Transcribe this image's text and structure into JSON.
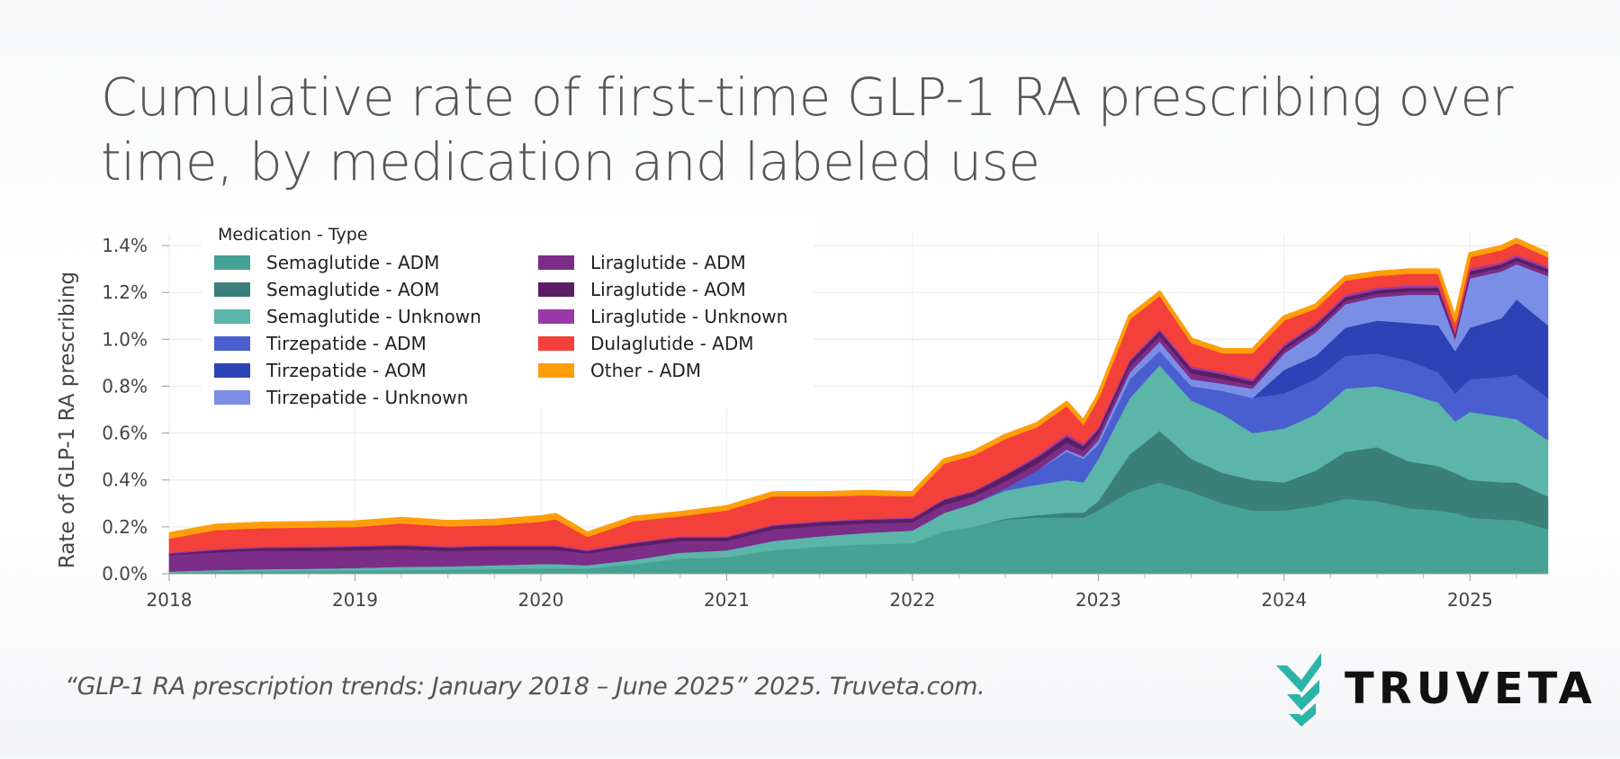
{
  "title": "Cumulative rate of first-time GLP-1 RA prescribing over time, by medication and labeled use",
  "citation": "“GLP-1 RA prescription trends: January 2018 – June 2025” 2025. Truveta.com.",
  "brand": {
    "name": "TRUVETA",
    "icon": "truveta-chevron-logo-icon",
    "color": "#2bb5a8"
  },
  "chart_data": {
    "type": "area",
    "stacked": true,
    "ylabel": "Rate of GLP-1 RA prescribing",
    "xlabel": "",
    "x_ticks": [
      "2018",
      "2019",
      "2020",
      "2021",
      "2022",
      "2023",
      "2024",
      "2025"
    ],
    "y_ticks": [
      "0.0%",
      "0.2%",
      "0.4%",
      "0.6%",
      "0.8%",
      "1.0%",
      "1.2%",
      "1.4%"
    ],
    "ylim": [
      0,
      1.45
    ],
    "y_unit": "%",
    "grid": true,
    "legend_title": "Medication - Type",
    "legend_placement": "top-left",
    "x": [
      2018.0,
      2018.25,
      2018.5,
      2018.75,
      2019.0,
      2019.25,
      2019.5,
      2019.75,
      2020.0,
      2020.08,
      2020.25,
      2020.5,
      2020.75,
      2021.0,
      2021.25,
      2021.5,
      2021.75,
      2022.0,
      2022.17,
      2022.33,
      2022.5,
      2022.67,
      2022.83,
      2022.92,
      2023.0,
      2023.17,
      2023.33,
      2023.5,
      2023.67,
      2023.83,
      2024.0,
      2024.17,
      2024.33,
      2024.5,
      2024.67,
      2024.83,
      2024.92,
      2025.0,
      2025.17,
      2025.25,
      2025.42
    ],
    "series": [
      {
        "name": "Semaglutide - ADM",
        "color": "#45a294",
        "values": [
          0.005,
          0.008,
          0.01,
          0.012,
          0.013,
          0.015,
          0.017,
          0.019,
          0.022,
          0.022,
          0.022,
          0.04,
          0.065,
          0.07,
          0.1,
          0.115,
          0.125,
          0.13,
          0.18,
          0.2,
          0.23,
          0.24,
          0.24,
          0.24,
          0.27,
          0.35,
          0.39,
          0.35,
          0.3,
          0.27,
          0.27,
          0.29,
          0.32,
          0.31,
          0.28,
          0.27,
          0.26,
          0.24,
          0.23,
          0.23,
          0.19
        ]
      },
      {
        "name": "Semaglutide - AOM",
        "color": "#3a8078",
        "values": [
          0,
          0,
          0,
          0,
          0,
          0,
          0,
          0,
          0,
          0,
          0,
          0,
          0,
          0,
          0,
          0,
          0,
          0,
          0,
          0,
          0.005,
          0.01,
          0.02,
          0.02,
          0.04,
          0.16,
          0.22,
          0.14,
          0.13,
          0.13,
          0.12,
          0.15,
          0.2,
          0.23,
          0.2,
          0.19,
          0.17,
          0.16,
          0.16,
          0.16,
          0.14
        ]
      },
      {
        "name": "Semaglutide - Unknown",
        "color": "#5bb5a8",
        "values": [
          0.005,
          0.008,
          0.01,
          0.01,
          0.012,
          0.015,
          0.015,
          0.018,
          0.02,
          0.02,
          0.015,
          0.02,
          0.025,
          0.03,
          0.04,
          0.045,
          0.05,
          0.055,
          0.08,
          0.1,
          0.12,
          0.13,
          0.14,
          0.13,
          0.18,
          0.24,
          0.28,
          0.25,
          0.25,
          0.2,
          0.23,
          0.24,
          0.27,
          0.26,
          0.29,
          0.27,
          0.22,
          0.29,
          0.28,
          0.27,
          0.24
        ]
      },
      {
        "name": "Tirzepatide - ADM",
        "color": "#4a5fcf",
        "values": [
          0,
          0,
          0,
          0,
          0,
          0,
          0,
          0,
          0,
          0,
          0,
          0,
          0,
          0,
          0,
          0,
          0,
          0,
          0,
          0,
          0.01,
          0.06,
          0.12,
          0.1,
          0.06,
          0.08,
          0.06,
          0.06,
          0.1,
          0.15,
          0.15,
          0.15,
          0.14,
          0.14,
          0.14,
          0.13,
          0.12,
          0.14,
          0.17,
          0.19,
          0.18
        ]
      },
      {
        "name": "Tirzepatide - AOM",
        "color": "#2d42b5",
        "values": [
          0,
          0,
          0,
          0,
          0,
          0,
          0,
          0,
          0,
          0,
          0,
          0,
          0,
          0,
          0,
          0,
          0,
          0,
          0,
          0,
          0,
          0,
          0,
          0,
          0,
          0,
          0,
          0,
          0,
          0,
          0.1,
          0.1,
          0.12,
          0.14,
          0.16,
          0.2,
          0.18,
          0.22,
          0.25,
          0.32,
          0.31
        ]
      },
      {
        "name": "Tirzepatide - Unknown",
        "color": "#7b8ee6",
        "values": [
          0,
          0,
          0,
          0,
          0,
          0,
          0,
          0,
          0,
          0,
          0,
          0,
          0,
          0,
          0,
          0,
          0,
          0,
          0,
          0,
          0,
          0,
          0.01,
          0.01,
          0.02,
          0.03,
          0.04,
          0.03,
          0.03,
          0.04,
          0.07,
          0.1,
          0.1,
          0.1,
          0.12,
          0.13,
          0.05,
          0.21,
          0.2,
          0.15,
          0.21
        ]
      },
      {
        "name": "Liraglutide - ADM",
        "color": "#7b2d87",
        "values": [
          0.07,
          0.075,
          0.08,
          0.075,
          0.075,
          0.075,
          0.065,
          0.065,
          0.06,
          0.06,
          0.05,
          0.055,
          0.05,
          0.04,
          0.05,
          0.045,
          0.04,
          0.035,
          0.035,
          0.03,
          0.03,
          0.03,
          0.03,
          0.025,
          0.025,
          0.025,
          0.025,
          0.025,
          0.02,
          0.015,
          0.015,
          0.015,
          0.015,
          0.015,
          0.015,
          0.015,
          0.01,
          0.015,
          0.015,
          0.015,
          0.015
        ]
      },
      {
        "name": "Liraglutide - AOM",
        "color": "#5a1f63",
        "values": [
          0.005,
          0.01,
          0.01,
          0.015,
          0.015,
          0.015,
          0.015,
          0.015,
          0.015,
          0.015,
          0.01,
          0.015,
          0.015,
          0.015,
          0.015,
          0.015,
          0.015,
          0.015,
          0.02,
          0.02,
          0.025,
          0.025,
          0.025,
          0.02,
          0.02,
          0.02,
          0.02,
          0.02,
          0.02,
          0.015,
          0.015,
          0.015,
          0.015,
          0.015,
          0.015,
          0.015,
          0.01,
          0.015,
          0.015,
          0.015,
          0.015
        ]
      },
      {
        "name": "Liraglutide - Unknown",
        "color": "#9a3aa8",
        "values": [
          0.005,
          0.005,
          0.005,
          0.005,
          0.005,
          0.005,
          0.005,
          0.005,
          0.005,
          0.005,
          0.005,
          0.005,
          0.005,
          0.005,
          0.005,
          0.005,
          0.005,
          0.005,
          0.005,
          0.005,
          0.005,
          0.01,
          0.01,
          0.01,
          0.01,
          0.01,
          0.01,
          0.01,
          0.01,
          0.01,
          0.01,
          0.01,
          0.01,
          0.01,
          0.01,
          0.01,
          0.01,
          0.01,
          0.01,
          0.01,
          0.01
        ]
      },
      {
        "name": "Dulaglutide - ADM",
        "color": "#f3403a",
        "values": [
          0.06,
          0.08,
          0.08,
          0.08,
          0.08,
          0.09,
          0.085,
          0.085,
          0.1,
          0.11,
          0.055,
          0.09,
          0.085,
          0.11,
          0.12,
          0.105,
          0.1,
          0.09,
          0.15,
          0.15,
          0.15,
          0.12,
          0.12,
          0.08,
          0.12,
          0.17,
          0.14,
          0.1,
          0.08,
          0.11,
          0.1,
          0.06,
          0.06,
          0.05,
          0.05,
          0.05,
          0.04,
          0.05,
          0.05,
          0.05,
          0.04
        ]
      },
      {
        "name": "Other - ADM",
        "color": "#ff9e0a",
        "values": [
          0.02,
          0.02,
          0.02,
          0.02,
          0.02,
          0.02,
          0.02,
          0.02,
          0.02,
          0.02,
          0.015,
          0.015,
          0.015,
          0.015,
          0.015,
          0.015,
          0.015,
          0.015,
          0.015,
          0.015,
          0.015,
          0.015,
          0.015,
          0.015,
          0.015,
          0.015,
          0.015,
          0.015,
          0.015,
          0.015,
          0.015,
          0.015,
          0.015,
          0.015,
          0.015,
          0.015,
          0.015,
          0.015,
          0.015,
          0.015,
          0.015
        ]
      }
    ]
  }
}
